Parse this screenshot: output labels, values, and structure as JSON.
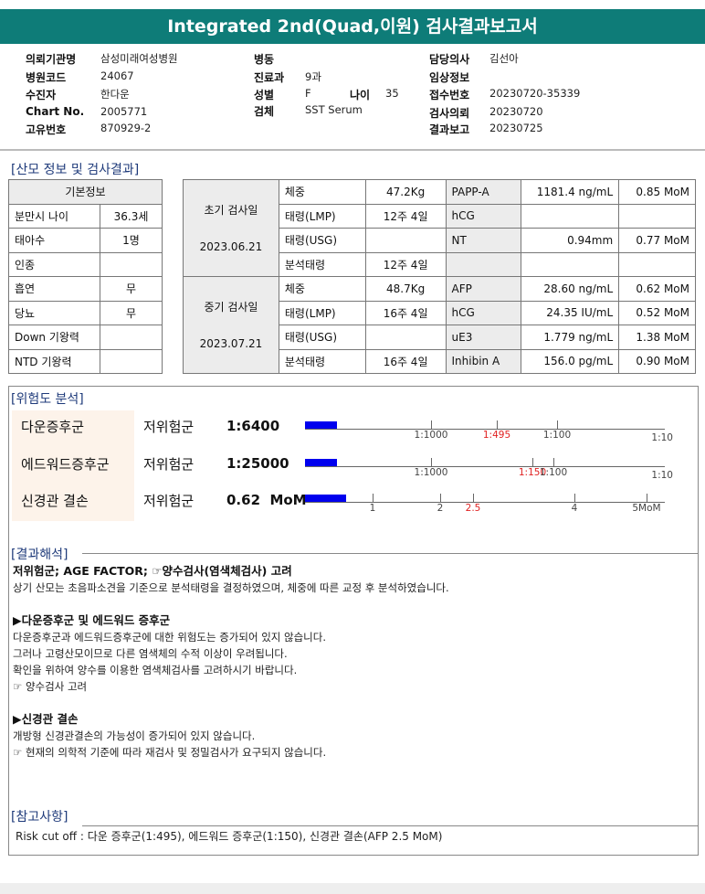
{
  "title": "Integrated 2nd(Quad,이원) 검사결과보고서",
  "info": {
    "col1": [
      {
        "label": "의뢰기관명",
        "value": "삼성미래여성병원"
      },
      {
        "label": "병원코드",
        "value": "24067"
      },
      {
        "label": "수진자",
        "value": "한다운"
      },
      {
        "label": "Chart No.",
        "value": "2005771"
      },
      {
        "label": "고유번호",
        "value": "870929-2"
      }
    ],
    "col2": [
      {
        "label": "병동",
        "value": ""
      },
      {
        "label": "진료과",
        "value": "9과"
      },
      {
        "label": "성별",
        "value": "F"
      },
      {
        "label": "검체",
        "value": "SST Serum"
      }
    ],
    "age": {
      "label": "나이",
      "value": "35"
    },
    "col3": [
      {
        "label": "담당의사",
        "value": "김선아"
      },
      {
        "label": "임상정보",
        "value": ""
      },
      {
        "label": "접수번호",
        "value": "20230720-35339"
      },
      {
        "label": "검사의뢰",
        "value": "20230720"
      },
      {
        "label": "결과보고",
        "value": "20230725"
      }
    ]
  },
  "section1": "[산모 정보 및 검사결과]",
  "basic": {
    "header": "기본정보",
    "rows": [
      [
        "분만시 나이",
        "36.3세"
      ],
      [
        "태아수",
        "1명"
      ],
      [
        "인종",
        ""
      ],
      [
        "흡연",
        "무"
      ],
      [
        "당뇨",
        "무"
      ],
      [
        "Down 기왕력",
        ""
      ],
      [
        "NTD 기왕력",
        ""
      ]
    ]
  },
  "tests": [
    {
      "label": "초기 검사일",
      "date": "2023.06.21",
      "rows": [
        [
          "체중",
          "47.2Kg",
          "PAPP-A",
          "1181.4 ng/mL",
          "0.85 MoM"
        ],
        [
          "태령(LMP)",
          "12주 4일",
          "hCG",
          "",
          ""
        ],
        [
          "태령(USG)",
          "",
          "NT",
          "0.94mm",
          "0.77 MoM"
        ],
        [
          "분석태령",
          "12주 4일",
          "",
          "",
          ""
        ]
      ]
    },
    {
      "label": "중기 검사일",
      "date": "2023.07.21",
      "rows": [
        [
          "체중",
          "48.7Kg",
          "AFP",
          "28.60 ng/mL",
          "0.62 MoM"
        ],
        [
          "태령(LMP)",
          "16주 4일",
          "hCG",
          "24.35 IU/mL",
          "0.52 MoM"
        ],
        [
          "태령(USG)",
          "",
          "uE3",
          "1.779 ng/mL",
          "1.38 MoM"
        ],
        [
          "분석태령",
          "16주 4일",
          "Inhibin A",
          "156.0 pg/mL",
          "0.90 MoM"
        ]
      ]
    }
  ],
  "section2": "[위험도 분석]",
  "risks": [
    {
      "name": "다운증후군",
      "group": "저위험군",
      "value": "1:6400",
      "bar_fraction": 0.09,
      "ticks": [
        "1:1000",
        "1:495",
        "1:100",
        "1:10"
      ],
      "cutoff": "1:495"
    },
    {
      "name": "에드워드증후군",
      "group": "저위험군",
      "value": "1:25000",
      "bar_fraction": 0.09,
      "ticks": [
        "1:1000",
        "1:150",
        "1:100",
        "1:10"
      ],
      "cutoff": "1:150"
    },
    {
      "name": "신경관 결손",
      "group": "저위험군",
      "value": "0.62  MoM",
      "bar_fraction": 0.115,
      "ticks": [
        "1",
        "2",
        "2.5",
        "4",
        "5MoM"
      ],
      "cutoff": "2.5"
    }
  ],
  "colors": {
    "header": "#0e7c78",
    "bar": "#0000ee",
    "cutoff": "#e02020",
    "section": "#1e3a7a"
  },
  "section3": "[결과해석]",
  "interpretation": [
    {
      "text": "저위험군; AGE FACTOR; ☞양수검사(염색체검사) 고려",
      "bold": true
    },
    {
      "text": "상기 산모는 초음파소견을 기준으로 분석태령을 결정하였으며, 체중에 따른 교정 후 분석하였습니다."
    },
    {
      "text": ""
    },
    {
      "text": "▶다운증후군 및 에드워드 증후군",
      "bold": true
    },
    {
      "text": "다운증후군과 에드워드증후군에 대한 위험도는 증가되어 있지 않습니다."
    },
    {
      "text": "그러나 고령산모이므로 다른 염색체의 수적 이상이 우려됩니다."
    },
    {
      "text": "확인을 위하여 양수를 이용한 염색체검사를 고려하시기 바랍니다."
    },
    {
      "text": "☞ 양수검사 고려"
    },
    {
      "text": ""
    },
    {
      "text": "▶신경관 결손",
      "bold": true
    },
    {
      "text": "개방형 신경관결손의 가능성이 증가되어 있지 않습니다."
    },
    {
      "text": "☞ 현재의 의학적 기준에 따라 재검사 및 정밀검사가 요구되지 않습니다."
    }
  ],
  "section4": "[참고사항]",
  "reference": "Risk cut off : 다운 증후군(1:495), 에드워드 증후군(1:150), 신경관 결손(AFP 2.5 MoM)"
}
